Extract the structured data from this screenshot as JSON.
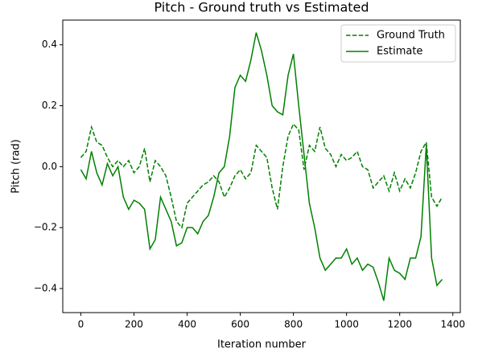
{
  "chart_data": {
    "type": "line",
    "title": "Pitch - Ground truth vs Estimated",
    "x_label": "Iteration number",
    "y_label": "Pitch (rad)",
    "x": [
      0,
      20,
      40,
      60,
      80,
      100,
      120,
      140,
      160,
      180,
      200,
      220,
      240,
      260,
      280,
      300,
      320,
      340,
      360,
      380,
      400,
      420,
      440,
      460,
      480,
      500,
      520,
      540,
      560,
      580,
      600,
      620,
      640,
      660,
      680,
      700,
      720,
      740,
      760,
      780,
      800,
      820,
      840,
      860,
      880,
      900,
      920,
      940,
      960,
      980,
      1000,
      1020,
      1040,
      1060,
      1080,
      1100,
      1120,
      1140,
      1160,
      1180,
      1200,
      1220,
      1240,
      1260,
      1280,
      1300,
      1320,
      1340,
      1360
    ],
    "series": [
      {
        "name": "Ground Truth",
        "color": "#008000",
        "linestyle": "dashed",
        "values": [
          0.03,
          0.05,
          0.13,
          0.08,
          0.07,
          0.03,
          0.0,
          0.02,
          0.0,
          0.02,
          -0.02,
          0.0,
          0.06,
          -0.05,
          0.02,
          0.0,
          -0.03,
          -0.1,
          -0.18,
          -0.2,
          -0.12,
          -0.1,
          -0.08,
          -0.06,
          -0.05,
          -0.03,
          -0.05,
          -0.1,
          -0.07,
          -0.03,
          -0.01,
          -0.04,
          -0.02,
          0.07,
          0.05,
          0.03,
          -0.07,
          -0.14,
          0.0,
          0.1,
          0.14,
          0.12,
          -0.01,
          0.07,
          0.05,
          0.13,
          0.06,
          0.04,
          0.0,
          0.04,
          0.02,
          0.03,
          0.05,
          0.0,
          -0.01,
          -0.07,
          -0.05,
          -0.03,
          -0.08,
          -0.02,
          -0.08,
          -0.04,
          -0.07,
          -0.02,
          0.05,
          0.08,
          -0.1,
          -0.13,
          -0.1
        ]
      },
      {
        "name": "Estimate",
        "color": "#008000",
        "linestyle": "solid",
        "values": [
          -0.01,
          -0.04,
          0.05,
          -0.02,
          -0.06,
          0.01,
          -0.03,
          0.0,
          -0.1,
          -0.14,
          -0.11,
          -0.12,
          -0.14,
          -0.27,
          -0.24,
          -0.1,
          -0.14,
          -0.18,
          -0.26,
          -0.25,
          -0.2,
          -0.2,
          -0.22,
          -0.18,
          -0.16,
          -0.1,
          -0.02,
          0.0,
          0.1,
          0.26,
          0.3,
          0.28,
          0.35,
          0.44,
          0.38,
          0.3,
          0.2,
          0.18,
          0.17,
          0.3,
          0.37,
          0.2,
          0.04,
          -0.12,
          -0.2,
          -0.3,
          -0.34,
          -0.32,
          -0.3,
          -0.3,
          -0.27,
          -0.32,
          -0.3,
          -0.34,
          -0.32,
          -0.33,
          -0.38,
          -0.44,
          -0.3,
          -0.34,
          -0.35,
          -0.37,
          -0.3,
          -0.3,
          -0.23,
          0.07,
          -0.3,
          -0.39,
          -0.37
        ]
      }
    ],
    "xlim": [
      -68,
      1428
    ],
    "ylim": [
      -0.479,
      0.481
    ],
    "xticks": [
      0,
      200,
      400,
      600,
      800,
      1000,
      1200,
      1400
    ],
    "yticks": [
      {
        "value": -0.4,
        "label": "−0.4"
      },
      {
        "value": -0.2,
        "label": "−0.2"
      },
      {
        "value": 0,
        "label": "0.0"
      },
      {
        "value": 0.2,
        "label": "0.2"
      },
      {
        "value": 0.4,
        "label": "0.4"
      }
    ],
    "legend": "upper right"
  }
}
